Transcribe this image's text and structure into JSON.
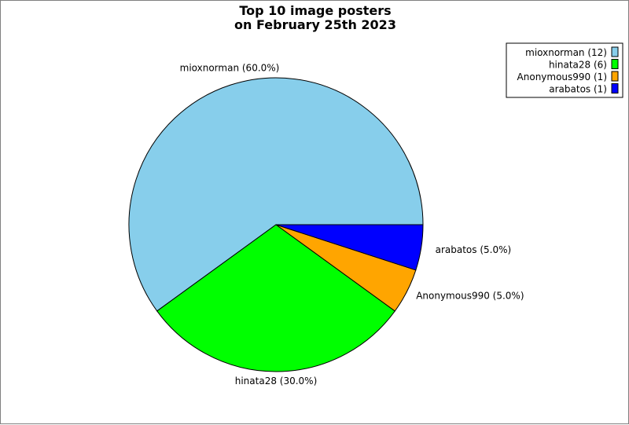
{
  "chart_data": {
    "type": "pie",
    "title": [
      "Top 10 image posters",
      "on February 25th 2023"
    ],
    "slices": [
      {
        "name": "mioxnorman",
        "count": 12,
        "percent": 60.0,
        "color": "#87ceeb",
        "legend": "mioxnorman (12)",
        "label": "mioxnorman (60.0%)"
      },
      {
        "name": "hinata28",
        "count": 6,
        "percent": 30.0,
        "color": "#00ff00",
        "legend": "hinata28 (6)",
        "label": "hinata28 (30.0%)"
      },
      {
        "name": "Anonymous990",
        "count": 1,
        "percent": 5.0,
        "color": "#ffa500",
        "legend": "Anonymous990 (1)",
        "label": "Anonymous990 (5.0%)"
      },
      {
        "name": "arabatos",
        "count": 1,
        "percent": 5.0,
        "color": "#0000ff",
        "legend": "arabatos (1)",
        "label": "arabatos (5.0%)"
      }
    ],
    "legend_position": "top-right",
    "start": "right",
    "direction": "counterclockwise"
  }
}
